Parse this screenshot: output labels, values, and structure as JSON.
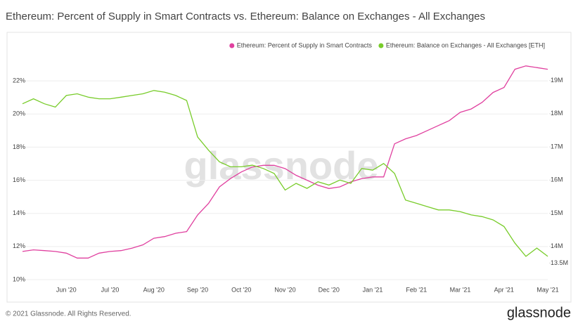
{
  "chart_data": {
    "type": "line",
    "title": "Ethereum: Percent of Supply in Smart Contracts vs. Ethereum: Balance on Exchanges - All Exchanges",
    "watermark": "glassnode",
    "categories": [
      null,
      null,
      null,
      null,
      "Jun '20",
      null,
      null,
      null,
      "Jul '20",
      null,
      null,
      null,
      "Aug '20",
      null,
      null,
      null,
      "Sep '20",
      null,
      null,
      null,
      "Oct '20",
      null,
      null,
      null,
      "Nov '20",
      null,
      null,
      null,
      "Dec '20",
      null,
      null,
      null,
      "Jan '21",
      null,
      null,
      null,
      "Feb '21",
      null,
      null,
      null,
      "Mar '21",
      null,
      null,
      null,
      "Apr '21",
      null,
      null,
      null,
      "May '21"
    ],
    "series": [
      {
        "name": "Ethereum: Percent of Supply in Smart Contracts",
        "color": "#e0409f",
        "axis": "y",
        "values": [
          11.7,
          11.8,
          11.75,
          11.7,
          11.6,
          11.3,
          11.3,
          11.6,
          11.7,
          11.75,
          11.9,
          12.1,
          12.5,
          12.6,
          12.8,
          12.9,
          13.9,
          14.6,
          15.6,
          16.1,
          16.5,
          16.8,
          16.9,
          16.9,
          16.7,
          16.3,
          16.0,
          15.7,
          15.5,
          15.6,
          15.9,
          16.1,
          16.2,
          16.2,
          18.2,
          18.5,
          18.7,
          19.0,
          19.3,
          19.6,
          20.1,
          20.3,
          20.7,
          21.3,
          21.6,
          22.7,
          22.9,
          22.8,
          22.7
        ]
      },
      {
        "name": "Ethereum: Balance on Exchanges - All Exchanges [ETH]",
        "color": "#78cc2a",
        "axis": "y2",
        "values": [
          18300000,
          18450000,
          18300000,
          18200000,
          18550000,
          18600000,
          18500000,
          18450000,
          18450000,
          18500000,
          18550000,
          18600000,
          18700000,
          18650000,
          18550000,
          18400000,
          17300000,
          16900000,
          16550000,
          16400000,
          16400000,
          16450000,
          16350000,
          16200000,
          15700000,
          15900000,
          15750000,
          15950000,
          15850000,
          16000000,
          15900000,
          16350000,
          16300000,
          16500000,
          16200000,
          15400000,
          15300000,
          15200000,
          15100000,
          15100000,
          15050000,
          14950000,
          14900000,
          14800000,
          14600000,
          14100000,
          13700000,
          13950000,
          13700000
        ]
      }
    ],
    "ylim": [
      10,
      23.5
    ],
    "yticks": [
      {
        "value": 10,
        "label": "10%"
      },
      {
        "value": 12,
        "label": "12%"
      },
      {
        "value": 14,
        "label": "14%"
      },
      {
        "value": 16,
        "label": "16%"
      },
      {
        "value": 18,
        "label": "18%"
      },
      {
        "value": 20,
        "label": "20%"
      },
      {
        "value": 22,
        "label": "22%"
      }
    ],
    "y2lim": [
      13000000,
      19740000
    ],
    "y2ticks": [
      {
        "value": 13500000,
        "label": "13.5M"
      },
      {
        "value": 14000000,
        "label": "14M"
      },
      {
        "value": 15000000,
        "label": "15M"
      },
      {
        "value": 16000000,
        "label": "16M"
      },
      {
        "value": 17000000,
        "label": "17M"
      },
      {
        "value": 18000000,
        "label": "18M"
      },
      {
        "value": 19000000,
        "label": "19M"
      }
    ],
    "grid": true,
    "legend": "top-right"
  },
  "footer": {
    "copyright": "© 2021 Glassnode. All Rights Reserved.",
    "logo": "glassnode"
  }
}
